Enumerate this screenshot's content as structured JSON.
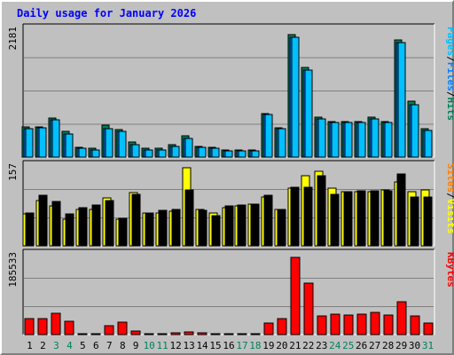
{
  "title": "Daily usage for January 2026",
  "colors": {
    "background": "#c0c0c0",
    "plot_bg": "#c0c0c0",
    "grid": "#808080",
    "title": "#0000ff",
    "hits": "#00805c",
    "files": "#0080ff",
    "pages": "#00c0ff",
    "visits": "#ffff00",
    "sites": "#ff8000",
    "kbytes": "#ff0000",
    "weekday_label": "#000000",
    "weekend_label": "#00805c"
  },
  "chart_data": [
    {
      "type": "bar",
      "panel": "top",
      "y_axis_label": "2181",
      "ylim": [
        0,
        2181
      ],
      "side_labels": [
        "Pages",
        "/",
        "Files",
        "/",
        "Hits"
      ],
      "side_label_colors": [
        "#00c0ff",
        "#000000",
        "#0080ff",
        "#000000",
        "#00805c"
      ],
      "categories": [
        "1",
        "2",
        "3",
        "4",
        "5",
        "6",
        "7",
        "8",
        "9",
        "10",
        "11",
        "12",
        "13",
        "14",
        "15",
        "16",
        "17",
        "18",
        "19",
        "20",
        "21",
        "22",
        "23",
        "24",
        "25",
        "26",
        "27",
        "28",
        "29",
        "30",
        "31"
      ],
      "series": [
        {
          "name": "Hits",
          "color": "#00805c",
          "values": [
            522,
            522,
            666,
            432,
            162,
            144,
            540,
            468,
            252,
            144,
            144,
            216,
            360,
            180,
            162,
            126,
            126,
            126,
            738,
            504,
            2097,
            1533,
            684,
            612,
            612,
            612,
            684,
            612,
            2002,
            950,
            486
          ]
        },
        {
          "name": "Files",
          "color": "#0080ff",
          "values": [
            486,
            504,
            630,
            396,
            144,
            126,
            486,
            432,
            216,
            126,
            126,
            180,
            324,
            162,
            144,
            108,
            108,
            108,
            720,
            486,
            2043,
            1479,
            648,
            594,
            594,
            594,
            648,
            594,
            1947,
            896,
            450
          ]
        },
        {
          "name": "Pages",
          "color": "#00c0ff",
          "values": [
            486,
            504,
            630,
            396,
            144,
            126,
            486,
            432,
            216,
            126,
            126,
            180,
            324,
            162,
            144,
            108,
            108,
            108,
            720,
            486,
            2043,
            1479,
            648,
            594,
            594,
            594,
            648,
            594,
            1947,
            896,
            450
          ]
        }
      ]
    },
    {
      "type": "bar",
      "panel": "middle",
      "y_axis_label": "157",
      "ylim": [
        0,
        157
      ],
      "side_labels": [
        "Sites",
        "/",
        "Visits"
      ],
      "side_label_colors": [
        "#ff8000",
        "#000000",
        "#ffff00"
      ],
      "categories": [
        "1",
        "2",
        "3",
        "4",
        "5",
        "6",
        "7",
        "8",
        "9",
        "10",
        "11",
        "12",
        "13",
        "14",
        "15",
        "16",
        "17",
        "18",
        "19",
        "20",
        "21",
        "22",
        "23",
        "24",
        "25",
        "26",
        "27",
        "28",
        "29",
        "30",
        "31"
      ],
      "series": [
        {
          "name": "Visits",
          "color": "#ffff00",
          "values": [
            62,
            89,
            79,
            52,
            71,
            71,
            95,
            52,
            104,
            64,
            64,
            68,
            154,
            71,
            64,
            75,
            78,
            82,
            96,
            71,
            113,
            138,
            146,
            113,
            106,
            106,
            106,
            110,
            125,
            106,
            110
          ]
        },
        {
          "name": "Sites",
          "color": "#orange",
          "values": [
            64,
            99,
            88,
            62,
            75,
            81,
            89,
            54,
            102,
            64,
            69,
            71,
            110,
            69,
            60,
            79,
            81,
            82,
            99,
            71,
            115,
            115,
            138,
            102,
            106,
            108,
            108,
            108,
            141,
            96,
            96
          ]
        }
      ]
    },
    {
      "type": "bar",
      "panel": "bottom",
      "y_axis_label": "185533",
      "ylim": [
        0,
        185533
      ],
      "side_labels": [
        "KBytes"
      ],
      "side_label_colors": [
        "#ff0000"
      ],
      "categories": [
        "1",
        "2",
        "3",
        "4",
        "5",
        "6",
        "7",
        "8",
        "9",
        "10",
        "11",
        "12",
        "13",
        "14",
        "15",
        "16",
        "17",
        "18",
        "19",
        "20",
        "21",
        "22",
        "23",
        "24",
        "25",
        "26",
        "27",
        "28",
        "29",
        "30",
        "31"
      ],
      "series": [
        {
          "name": "KBytes",
          "color": "#ff0000",
          "values": [
            38000,
            38000,
            50000,
            30000,
            1000,
            1000,
            20000,
            28000,
            8000,
            2000,
            2000,
            4000,
            6000,
            4000,
            2000,
            1000,
            1000,
            1000,
            26000,
            38000,
            180000,
            120000,
            44000,
            48000,
            46000,
            48000,
            52000,
            46000,
            76000,
            44000,
            26000
          ]
        }
      ]
    }
  ],
  "weekend_days": [
    "3",
    "4",
    "10",
    "11",
    "17",
    "18",
    "24",
    "25",
    "31"
  ]
}
